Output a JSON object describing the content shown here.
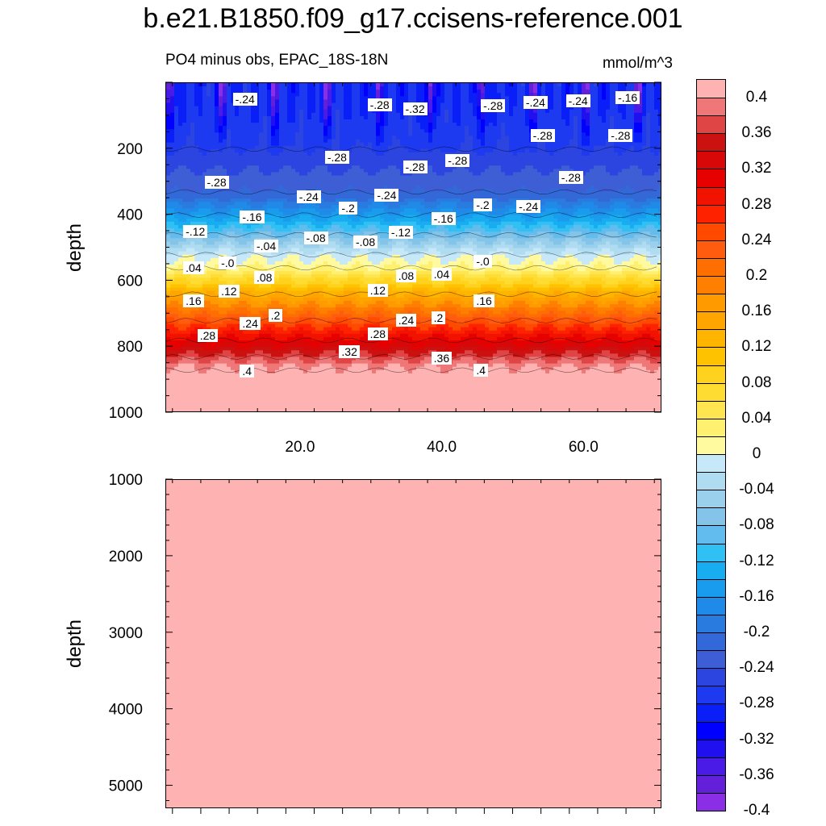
{
  "chart_data": {
    "type": "filled-contour",
    "title": "b.e21.B1850.f09_g17.ccisens-reference.001",
    "subtitle_left": "PO4 minus obs, EPAC_18S-18N",
    "units": "mmol/m^3",
    "ylabel": "depth",
    "upper_panel": {
      "ylim": [
        0,
        1000
      ],
      "ytick_labels": [
        "200",
        "400",
        "600",
        "800",
        "1000"
      ],
      "xlim": [
        1,
        71
      ],
      "xtick_labels": [
        "20.0",
        "40.0",
        "60.0"
      ],
      "depth_profile": [
        {
          "depth": 50,
          "value": -0.3
        },
        {
          "depth": 200,
          "value": -0.28
        },
        {
          "depth": 330,
          "value": -0.24
        },
        {
          "depth": 400,
          "value": -0.17
        },
        {
          "depth": 460,
          "value": -0.1
        },
        {
          "depth": 520,
          "value": -0.03
        },
        {
          "depth": 560,
          "value": 0.0
        },
        {
          "depth": 640,
          "value": 0.12
        },
        {
          "depth": 720,
          "value": 0.22
        },
        {
          "depth": 780,
          "value": 0.29
        },
        {
          "depth": 830,
          "value": 0.35
        },
        {
          "depth": 870,
          "value": 0.39
        },
        {
          "depth": 1000,
          "value": 0.4
        }
      ],
      "contour_labels": [
        {
          "text": "-.24",
          "x": 12,
          "depth": 50
        },
        {
          "text": "-.28",
          "x": 31,
          "depth": 65
        },
        {
          "text": "-.32",
          "x": 36,
          "depth": 78
        },
        {
          "text": "-.28",
          "x": 47,
          "depth": 68
        },
        {
          "text": "-.24",
          "x": 53,
          "depth": 58
        },
        {
          "text": "-.24",
          "x": 59,
          "depth": 55
        },
        {
          "text": "-.16",
          "x": 66,
          "depth": 45
        },
        {
          "text": "-.28",
          "x": 54,
          "depth": 160
        },
        {
          "text": "-.28",
          "x": 65,
          "depth": 158
        },
        {
          "text": "-.28",
          "x": 25,
          "depth": 225
        },
        {
          "text": "-.28",
          "x": 42,
          "depth": 235
        },
        {
          "text": "-.28",
          "x": 36,
          "depth": 255
        },
        {
          "text": "-.28",
          "x": 8,
          "depth": 300
        },
        {
          "text": "-.28",
          "x": 58,
          "depth": 285
        },
        {
          "text": "-.24",
          "x": 21,
          "depth": 345
        },
        {
          "text": "-.24",
          "x": 32,
          "depth": 340
        },
        {
          "text": "-.24",
          "x": 52,
          "depth": 375
        },
        {
          "text": "-.2",
          "x": 27,
          "depth": 380
        },
        {
          "text": "-.2",
          "x": 46,
          "depth": 370
        },
        {
          "text": "-.16",
          "x": 13,
          "depth": 405
        },
        {
          "text": "-.16",
          "x": 40,
          "depth": 410
        },
        {
          "text": "-.12",
          "x": 5,
          "depth": 450
        },
        {
          "text": "-.12",
          "x": 34,
          "depth": 452
        },
        {
          "text": "-.08",
          "x": 22,
          "depth": 470
        },
        {
          "text": "-.08",
          "x": 29,
          "depth": 482
        },
        {
          "text": "-.04",
          "x": 15,
          "depth": 495
        },
        {
          "text": "-.0",
          "x": 10,
          "depth": 545
        },
        {
          "text": "-.0",
          "x": 46,
          "depth": 540
        },
        {
          "text": ".04",
          "x": 5,
          "depth": 560
        },
        {
          "text": ".04",
          "x": 40,
          "depth": 580
        },
        {
          "text": ".08",
          "x": 15,
          "depth": 590
        },
        {
          "text": ".08",
          "x": 35,
          "depth": 585
        },
        {
          "text": ".12",
          "x": 10,
          "depth": 630
        },
        {
          "text": ".12",
          "x": 31,
          "depth": 628
        },
        {
          "text": ".16",
          "x": 5,
          "depth": 660
        },
        {
          "text": ".16",
          "x": 46,
          "depth": 660
        },
        {
          "text": ".2",
          "x": 17,
          "depth": 705
        },
        {
          "text": ".2",
          "x": 40,
          "depth": 712
        },
        {
          "text": ".24",
          "x": 13,
          "depth": 728
        },
        {
          "text": ".24",
          "x": 35,
          "depth": 718
        },
        {
          "text": ".28",
          "x": 7,
          "depth": 765
        },
        {
          "text": ".28",
          "x": 31,
          "depth": 760
        },
        {
          "text": ".32",
          "x": 27,
          "depth": 815
        },
        {
          "text": ".36",
          "x": 40,
          "depth": 833
        },
        {
          "text": ".4",
          "x": 13,
          "depth": 872
        },
        {
          "text": ".4",
          "x": 46,
          "depth": 870
        }
      ]
    },
    "lower_panel": {
      "ylim": [
        1000,
        5300
      ],
      "ytick_labels": [
        "1000",
        "2000",
        "3000",
        "4000",
        "5000"
      ],
      "fill_value": 0.4
    },
    "colorbar": {
      "levels": [
        "0.4",
        "0.36",
        "0.32",
        "0.28",
        "0.24",
        "0.2",
        "0.16",
        "0.12",
        "0.08",
        "0.04",
        "0",
        "-0.04",
        "-0.08",
        "-0.12",
        "-0.16",
        "-0.2",
        "-0.24",
        "-0.28",
        "-0.32",
        "-0.36",
        "-0.4"
      ],
      "colors": [
        "#ffb2b2",
        "#ef7777",
        "#e04545",
        "#cc1111",
        "#d90808",
        "#e60000",
        "#f21200",
        "#ff2200",
        "#ff4a00",
        "#ff5c10",
        "#ff6e00",
        "#ff8000",
        "#ff9a00",
        "#ffa500",
        "#ffb400",
        "#ffc200",
        "#ffd21e",
        "#ffdc32",
        "#ffe650",
        "#fff070",
        "#fffaa0",
        "#c6e8f8",
        "#b0dcf2",
        "#9ad0ec",
        "#84c4e8",
        "#62bcee",
        "#30c0f4",
        "#18acf0",
        "#1a9cee",
        "#208ae8",
        "#2a7be0",
        "#3268d8",
        "#3e5ed6",
        "#2c44e0",
        "#1e3af0",
        "#0a1ef8",
        "#0000ff",
        "#2010f0",
        "#4a1ae6",
        "#6420d8",
        "#8a2fe6"
      ]
    }
  }
}
